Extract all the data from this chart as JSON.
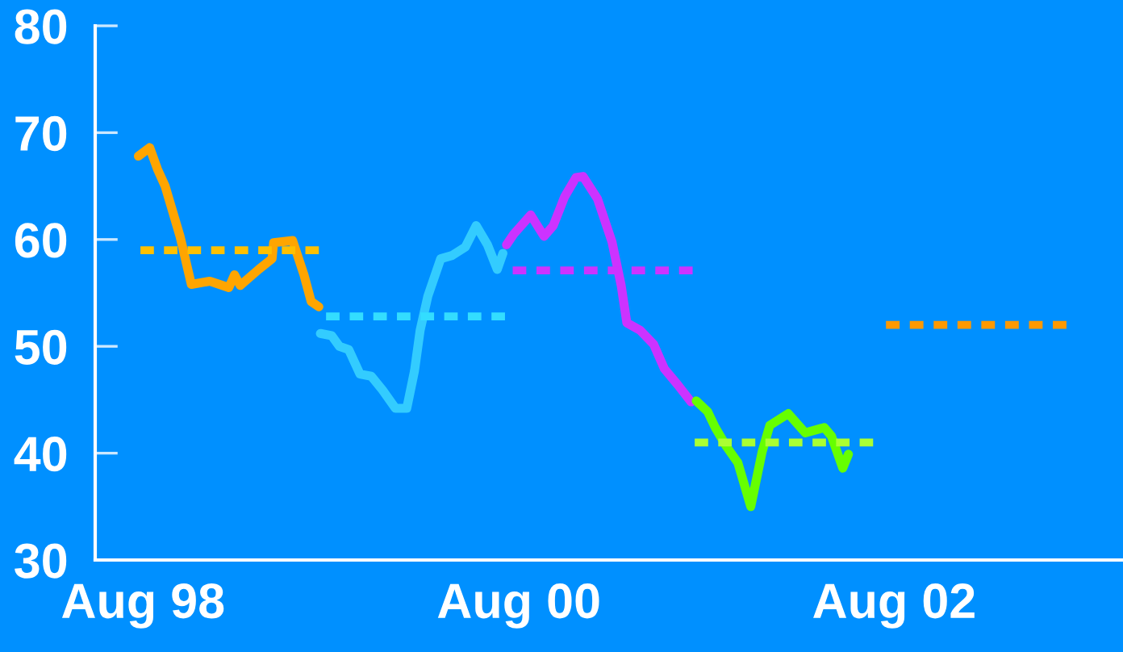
{
  "chart_data": {
    "type": "line",
    "xlim": [
      "1998-04-30",
      "2003-10-20"
    ],
    "xticks": [
      {
        "value": "1998-08",
        "label": "Aug 98"
      },
      {
        "value": "2000-08",
        "label": "Aug 00"
      },
      {
        "value": "2002-08",
        "label": "Aug 02"
      }
    ],
    "ylim": [
      30,
      80
    ],
    "yticks": [
      30,
      40,
      50,
      60,
      70,
      80
    ],
    "grid": false,
    "legend": false,
    "series": [
      {
        "color": "#ffa500",
        "line_style": "solid",
        "x": [
          "1998-07-23",
          "1998-08-14",
          "1998-08-29",
          "1998-09-13",
          "1998-10-12",
          "1998-11-03",
          "1998-12-09",
          "1999-01-15",
          "1999-01-26",
          "1999-02-06",
          "1999-03-14",
          "1999-04-09",
          "1999-04-12",
          "1999-05-19",
          "1999-06-10",
          "1999-06-24",
          "1999-07-09"
        ],
        "values": [
          67.8,
          68.6,
          66.6,
          65.0,
          60.3,
          55.8,
          56.1,
          55.5,
          56.7,
          55.7,
          57.2,
          58.2,
          59.7,
          59.9,
          56.7,
          54.2,
          53.7
        ]
      },
      {
        "color": "#33ccff",
        "line_style": "solid",
        "x": [
          "1999-07-12",
          "1999-08-03",
          "1999-08-18",
          "1999-09-05",
          "1999-09-27",
          "1999-10-19",
          "1999-11-10",
          "1999-12-05",
          "1999-12-27",
          "2000-01-11",
          "2000-01-22",
          "2000-02-06",
          "2000-03-02",
          "2000-03-24",
          "2000-04-19",
          "2000-05-10",
          "2000-06-01",
          "2000-06-20",
          "2000-07-01"
        ],
        "values": [
          51.2,
          51.0,
          50.0,
          49.7,
          47.4,
          47.2,
          45.9,
          44.2,
          44.2,
          47.7,
          51.5,
          54.7,
          58.2,
          58.5,
          59.3,
          61.3,
          59.5,
          57.2,
          58.7
        ]
      },
      {
        "color": "#cc33ff",
        "line_style": "solid",
        "x": [
          "2000-07-08",
          "2000-07-22",
          "2000-08-24",
          "2000-09-19",
          "2000-10-07",
          "2000-10-29",
          "2000-11-20",
          "2000-12-04",
          "2001-01-01",
          "2001-01-29",
          "2001-02-16",
          "2001-02-27",
          "2001-03-25",
          "2001-04-20",
          "2001-05-11",
          "2001-06-06",
          "2001-07-02"
        ],
        "values": [
          59.5,
          60.5,
          62.3,
          60.3,
          61.3,
          64.0,
          65.8,
          65.9,
          63.8,
          59.8,
          55.7,
          52.2,
          51.5,
          50.2,
          47.9,
          46.4,
          44.8
        ]
      },
      {
        "color": "#66ff00",
        "line_style": "solid",
        "x": [
          "2001-07-12",
          "2001-08-03",
          "2001-08-18",
          "2001-09-09",
          "2001-10-01",
          "2001-10-26",
          "2001-11-17",
          "2001-12-02",
          "2002-01-07",
          "2002-02-09",
          "2002-03-18",
          "2002-04-01",
          "2002-04-23",
          "2002-05-04"
        ],
        "values": [
          44.9,
          43.9,
          42.4,
          40.6,
          39.1,
          35.0,
          40.1,
          42.6,
          43.7,
          41.9,
          42.4,
          41.6,
          38.6,
          39.9
        ]
      },
      {
        "color": "#ffc000",
        "line_style": "dashed",
        "x": [
          "1998-07-27",
          "1999-07-09"
        ],
        "values": [
          59,
          59
        ]
      },
      {
        "color": "#33ddff",
        "line_style": "dashed",
        "x": [
          "1999-07-23",
          "2000-07-05"
        ],
        "values": [
          52.8,
          52.8
        ]
      },
      {
        "color": "#cc33ff",
        "line_style": "dashed",
        "x": [
          "2000-07-20",
          "2001-07-05"
        ],
        "values": [
          57.1,
          57.1
        ]
      },
      {
        "color": "#aaff33",
        "line_style": "dashed",
        "x": [
          "2001-07-09",
          "2002-06-21"
        ],
        "values": [
          41,
          41
        ]
      },
      {
        "color": "#ff9900",
        "line_style": "dashed",
        "x": [
          "2002-07-16",
          "2003-07-02"
        ],
        "values": [
          52,
          52
        ]
      }
    ]
  }
}
